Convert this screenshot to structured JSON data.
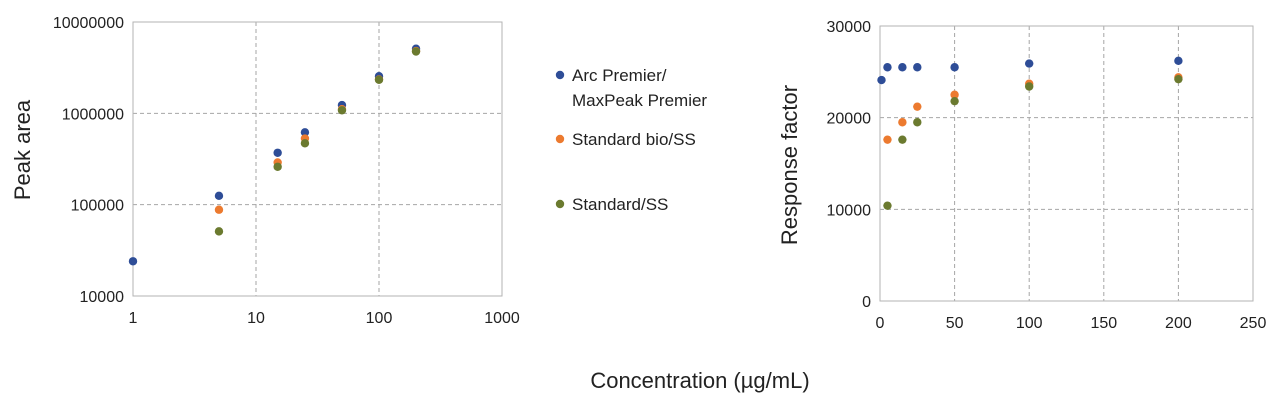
{
  "colors": {
    "arc": "#2e4d97",
    "bio": "#ec7a2f",
    "std": "#6b7a2f",
    "grid": "#a6a6a6",
    "frame": "#b3b3b3"
  },
  "legend": [
    {
      "lines": [
        "Arc Premier/",
        "MaxPeak Premier"
      ],
      "color_key": "arc"
    },
    {
      "lines": [
        "Standard bio/SS"
      ],
      "color_key": "bio"
    },
    {
      "lines": [
        "Standard/SS"
      ],
      "color_key": "std"
    }
  ],
  "common_xlabel": "Concentration (µg/mL)",
  "chart_data": [
    {
      "type": "scatter",
      "xscale": "log",
      "yscale": "log",
      "xlim": [
        1,
        1000
      ],
      "ylim": [
        10000,
        10000000
      ],
      "xticks": [
        1,
        10,
        100,
        1000
      ],
      "xtick_labels": [
        "1",
        "10",
        "100",
        "1000"
      ],
      "yticks": [
        10000,
        100000,
        1000000,
        10000000
      ],
      "ytick_labels": [
        "10000",
        "100000",
        "1000000",
        "10000000"
      ],
      "xlabel": "",
      "ylabel": "Peak area",
      "grid": true,
      "series": [
        {
          "name": "Arc Premier/ MaxPeak Premier",
          "color_key": "arc",
          "x": [
            1,
            5,
            15,
            25,
            50,
            100,
            200
          ],
          "y": [
            24000,
            125000,
            370000,
            620000,
            1230000,
            2550000,
            5100000
          ]
        },
        {
          "name": "Standard bio/SS",
          "color_key": "bio",
          "x": [
            5,
            15,
            25,
            50,
            100,
            200
          ],
          "y": [
            88000,
            290000,
            530000,
            1110000,
            2350000,
            4800000
          ]
        },
        {
          "name": "Standard/SS",
          "color_key": "std",
          "x": [
            5,
            15,
            25,
            50,
            100,
            200
          ],
          "y": [
            51000,
            260000,
            470000,
            1080000,
            2330000,
            4750000
          ]
        }
      ]
    },
    {
      "type": "scatter",
      "xscale": "linear",
      "yscale": "linear",
      "xlim": [
        0,
        250
      ],
      "ylim": [
        0,
        30000
      ],
      "xticks": [
        0,
        50,
        100,
        150,
        200,
        250
      ],
      "xtick_labels": [
        "0",
        "50",
        "100",
        "150",
        "200",
        "250"
      ],
      "yticks": [
        0,
        10000,
        20000,
        30000
      ],
      "ytick_labels": [
        "0",
        "10000",
        "20000",
        "30000"
      ],
      "xlabel": "",
      "ylabel": "Response factor",
      "grid": true,
      "series": [
        {
          "name": "Arc Premier/ MaxPeak Premier",
          "color_key": "arc",
          "x": [
            1,
            5,
            15,
            25,
            50,
            100,
            200
          ],
          "y": [
            24100,
            25500,
            25500,
            25500,
            25500,
            25900,
            26200
          ]
        },
        {
          "name": "Standard bio/SS",
          "color_key": "bio",
          "x": [
            5,
            15,
            25,
            50,
            100,
            200
          ],
          "y": [
            17600,
            19500,
            21200,
            22500,
            23700,
            24400
          ]
        },
        {
          "name": "Standard/SS",
          "color_key": "std",
          "x": [
            5,
            15,
            25,
            50,
            100,
            200
          ],
          "y": [
            10400,
            17600,
            19500,
            21800,
            23400,
            24200
          ]
        }
      ]
    }
  ]
}
